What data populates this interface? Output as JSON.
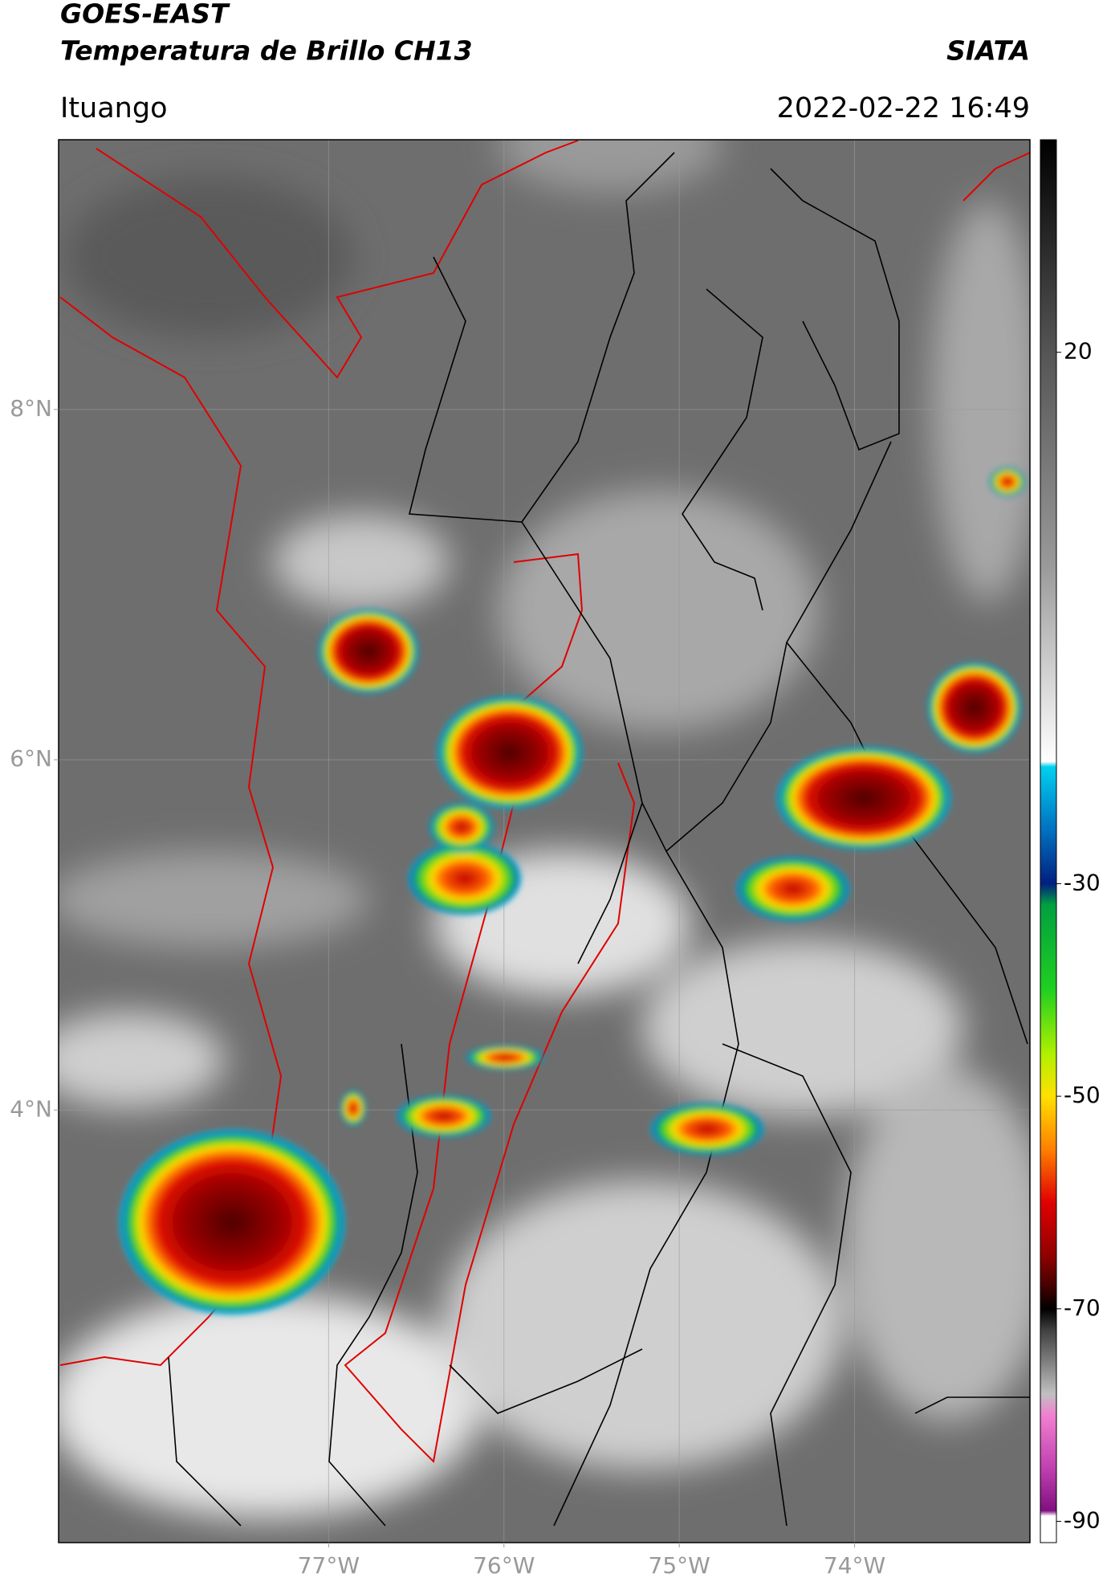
{
  "header": {
    "title": "GOES-EAST",
    "subtitle": "Temperatura de Brillo CH13",
    "source": "SIATA",
    "location": "Ituango",
    "timestamp": "2022-02-22 16:49"
  },
  "map": {
    "lon_range": [
      -78.54,
      -73.0
    ],
    "lat_range": [
      1.53,
      9.54
    ],
    "grid": true,
    "lon_ticks": [
      {
        "value": -77,
        "label": "77°W"
      },
      {
        "value": -76,
        "label": "76°W"
      },
      {
        "value": -75,
        "label": "75°W"
      },
      {
        "value": -74,
        "label": "74°W"
      }
    ],
    "lat_ticks": [
      {
        "value": 8,
        "label": "8°N"
      },
      {
        "value": 6,
        "label": "6°N"
      },
      {
        "value": 4,
        "label": "4°N"
      }
    ]
  },
  "colorbar": {
    "range": [
      -92,
      40
    ],
    "ticks": [
      20,
      -30,
      -50,
      -70,
      -90
    ],
    "colormap": [
      {
        "value": 40,
        "color": "#000000"
      },
      {
        "value": 30,
        "color": "#2a2a2a"
      },
      {
        "value": 20,
        "color": "#555555"
      },
      {
        "value": 0,
        "color": "#999999"
      },
      {
        "value": -18.5,
        "color": "#ffffff"
      },
      {
        "value": -19,
        "color": "#00d0f0"
      },
      {
        "value": -25,
        "color": "#0070c0"
      },
      {
        "value": -30,
        "color": "#002080"
      },
      {
        "value": -32,
        "color": "#00a040"
      },
      {
        "value": -40,
        "color": "#20d020"
      },
      {
        "value": -46,
        "color": "#b0f000"
      },
      {
        "value": -50,
        "color": "#ffe000"
      },
      {
        "value": -55,
        "color": "#ff8000"
      },
      {
        "value": -60,
        "color": "#e00000"
      },
      {
        "value": -65,
        "color": "#900000"
      },
      {
        "value": -68,
        "color": "#400000"
      },
      {
        "value": -70,
        "color": "#000000"
      },
      {
        "value": -72,
        "color": "#404040"
      },
      {
        "value": -78,
        "color": "#c0c0c0"
      },
      {
        "value": -80,
        "color": "#f080d0"
      },
      {
        "value": -85,
        "color": "#c040b0"
      },
      {
        "value": -89,
        "color": "#801080"
      },
      {
        "value": -89.5,
        "color": "#ffffff"
      },
      {
        "value": -92,
        "color": "#ffffff"
      }
    ]
  }
}
